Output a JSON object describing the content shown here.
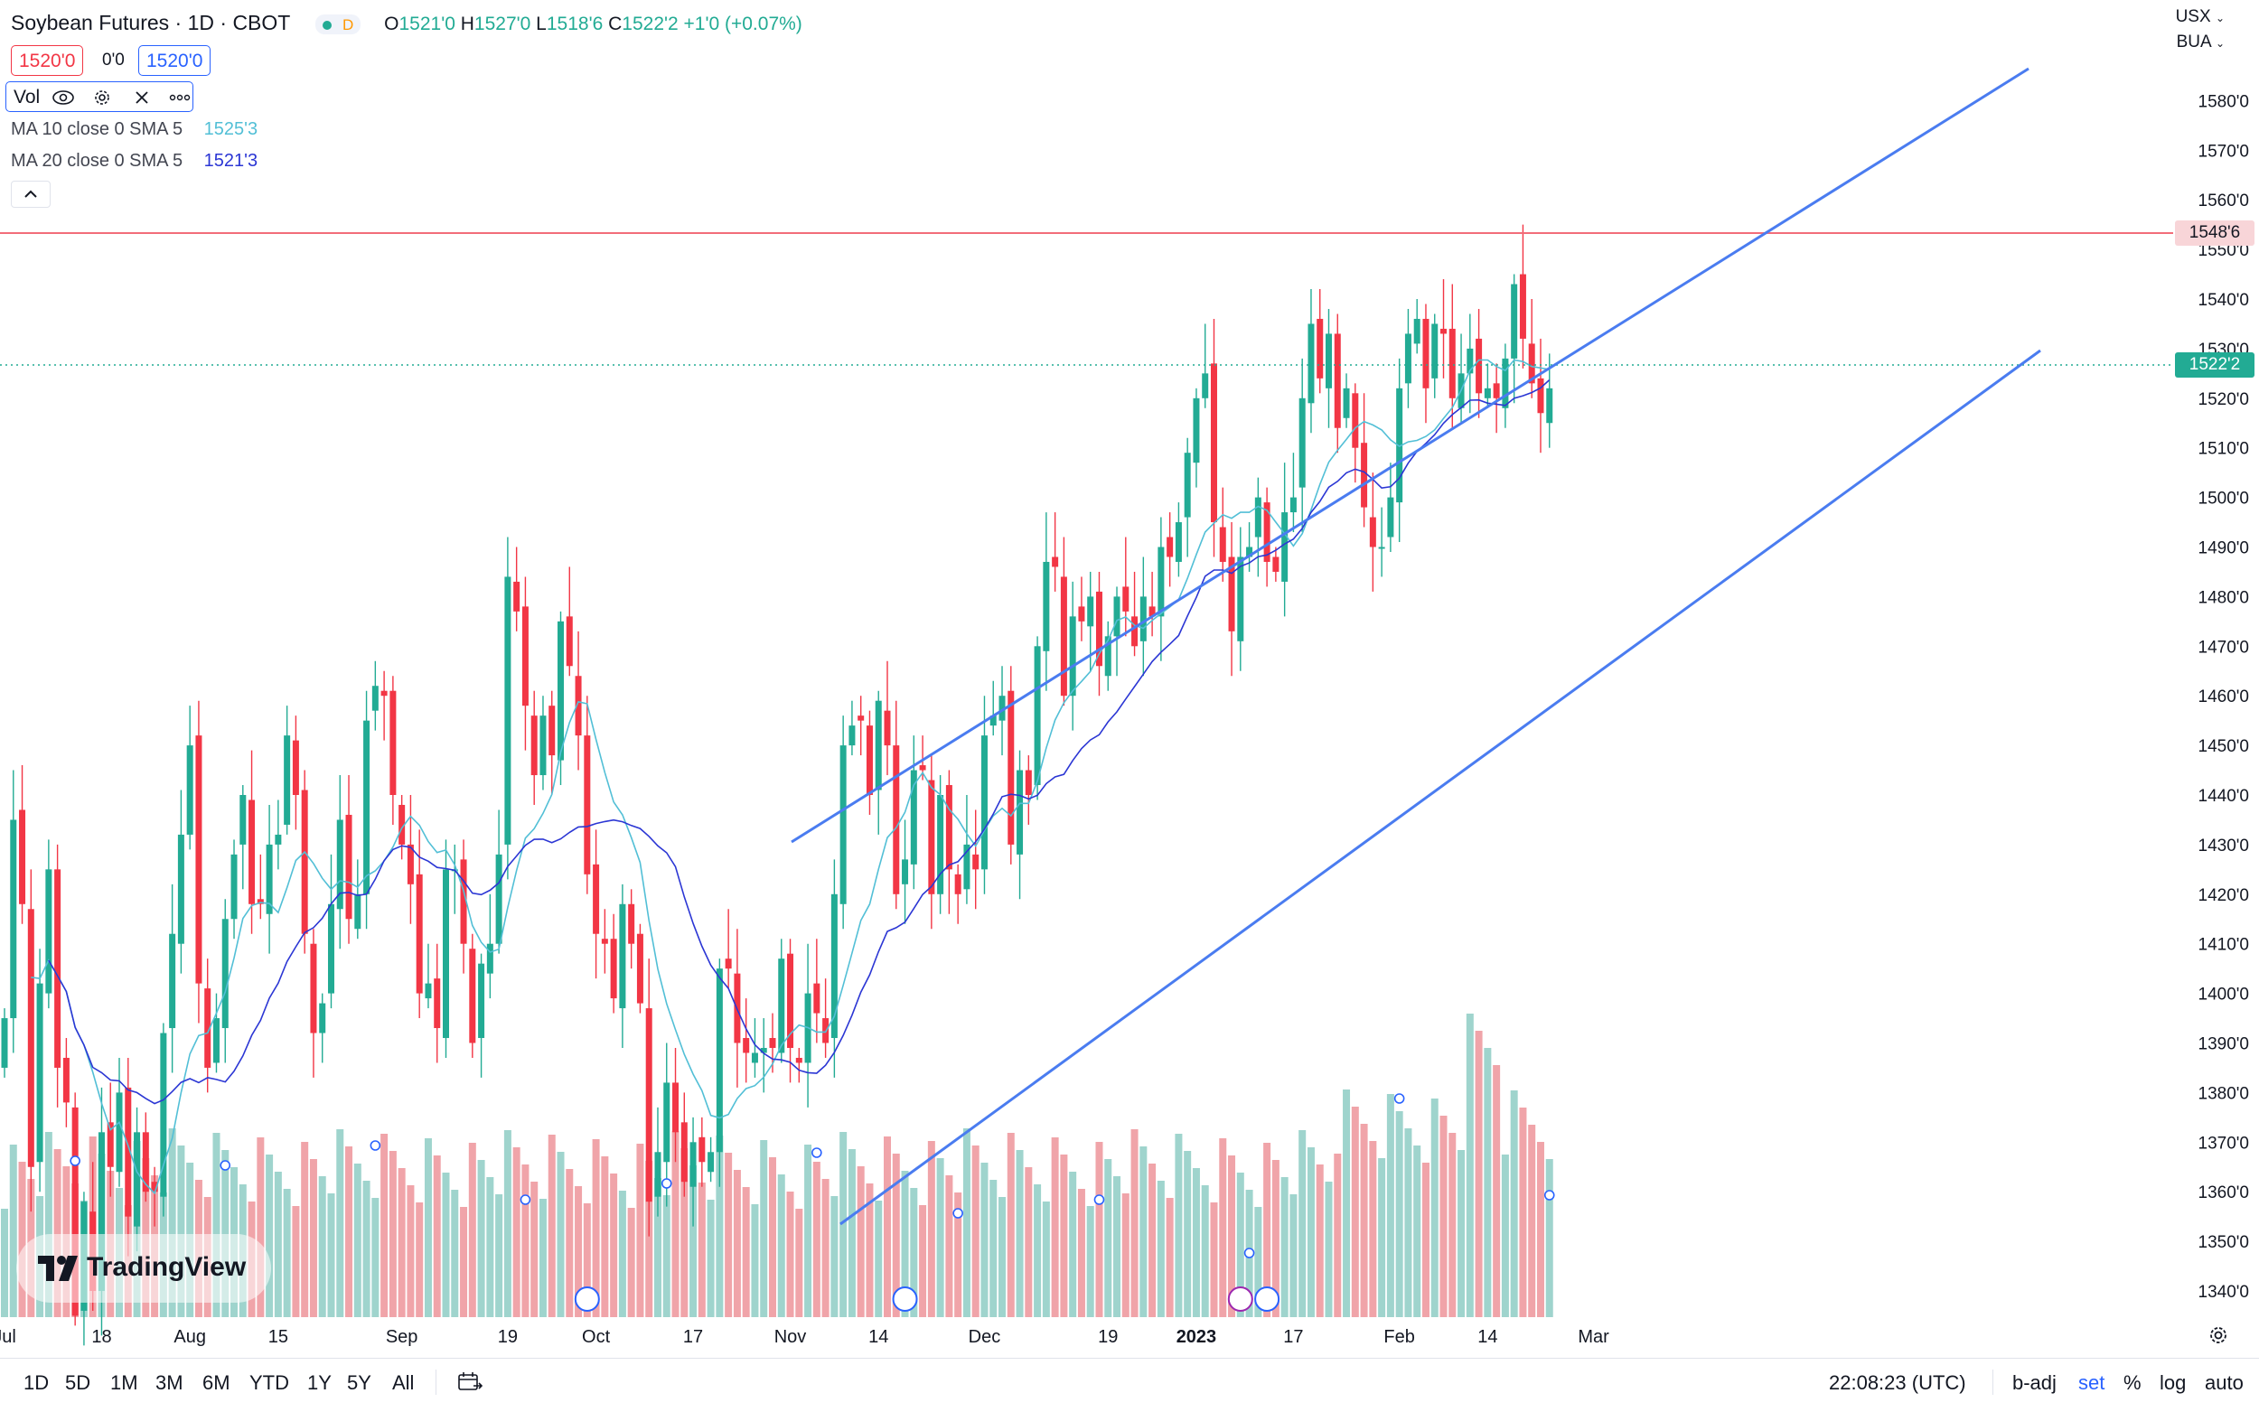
{
  "header": {
    "title": "Soybean Futures · 1D · CBOT",
    "status_letter": "D",
    "open_label": "O",
    "open": "1521'0",
    "high_label": "H",
    "high": "1527'0",
    "low_label": "L",
    "low": "1518'6",
    "close_label": "C",
    "close": "1522'2",
    "change": "+1'0 (+0.07%)",
    "sell_price": "1520'0",
    "spread": "0'0",
    "buy_price": "1520'0"
  },
  "currency": {
    "unit": "USX",
    "unit2": "BUA"
  },
  "indicators": {
    "vol_label": "Vol",
    "ma10_label": "MA 10 close 0 SMA 5",
    "ma10_value": "1525'3",
    "ma20_label": "MA 20 close 0 SMA 5",
    "ma20_value": "1521'3"
  },
  "price_tags": {
    "resistance": "1548'6",
    "last": "1522'2"
  },
  "logo": "TradingView",
  "bottom_bar": {
    "timeframes": [
      "1D",
      "5D",
      "1M",
      "3M",
      "6M",
      "YTD",
      "1Y",
      "5Y",
      "All"
    ],
    "clock": "22:08:23 (UTC)",
    "badj": "b-adj",
    "set": "set",
    "pct": "%",
    "log": "log",
    "auto": "auto"
  },
  "colors": {
    "up": "#22ab94",
    "down": "#f23645",
    "up_vol": "#9fd4cd",
    "down_vol": "#f0a4a9",
    "ma10": "#52bfd6",
    "ma20": "#2b36d4",
    "trend": "#4a7cf0",
    "resistance": "#f26d79",
    "accent": "#2962ff"
  },
  "chart_data": {
    "type": "candlestick",
    "title": "Soybean Futures · 1D · CBOT",
    "ylim": [
      1332,
      1585
    ],
    "y_ticks": [
      "1340'0",
      "1350'0",
      "1360'0",
      "1370'0",
      "1380'0",
      "1390'0",
      "1400'0",
      "1410'0",
      "1420'0",
      "1430'0",
      "1440'0",
      "1450'0",
      "1460'0",
      "1470'0",
      "1480'0",
      "1490'0",
      "1500'0",
      "1510'0",
      "1520'0",
      "1530'0",
      "1540'0",
      "1550'0",
      "1560'0",
      "1570'0",
      "1580'0"
    ],
    "x_ticks": [
      {
        "label": "Jul",
        "idx": 0
      },
      {
        "label": "18",
        "idx": 11
      },
      {
        "label": "Aug",
        "idx": 21
      },
      {
        "label": "15",
        "idx": 31
      },
      {
        "label": "Sep",
        "idx": 45
      },
      {
        "label": "19",
        "idx": 57
      },
      {
        "label": "Oct",
        "idx": 67
      },
      {
        "label": "17",
        "idx": 78
      },
      {
        "label": "Nov",
        "idx": 89
      },
      {
        "label": "14",
        "idx": 99
      },
      {
        "label": "Dec",
        "idx": 111
      },
      {
        "label": "19",
        "idx": 125
      },
      {
        "label": "2023",
        "idx": 135
      },
      {
        "label": "17",
        "idx": 146
      },
      {
        "label": "Feb",
        "idx": 158
      },
      {
        "label": "14",
        "idx": 168
      },
      {
        "label": "Mar",
        "idx": 180
      }
    ],
    "closes": [
      1395,
      1435,
      1418,
      1365,
      1402,
      1425,
      1385,
      1378,
      1335,
      1358,
      1340,
      1372,
      1365,
      1380,
      1355,
      1372,
      1360,
      1360,
      1392,
      1412,
      1432,
      1450,
      1402,
      1385,
      1395,
      1415,
      1428,
      1440,
      1418,
      1418,
      1430,
      1432,
      1452,
      1440,
      1412,
      1392,
      1398,
      1418,
      1435,
      1415,
      1420,
      1455,
      1462,
      1460,
      1440,
      1430,
      1422,
      1400,
      1402,
      1393,
      1425,
      1425,
      1410,
      1390,
      1406,
      1410,
      1428,
      1484,
      1477,
      1458,
      1444,
      1456,
      1448,
      1475,
      1466,
      1452,
      1424,
      1412,
      1410,
      1399,
      1418,
      1410,
      1398,
      1358,
      1368,
      1382,
      1372,
      1362,
      1370,
      1366,
      1368,
      1405,
      1405,
      1390,
      1388,
      1388,
      1389,
      1389,
      1407,
      1389,
      1386,
      1400,
      1396,
      1390,
      1420,
      1450,
      1454,
      1455,
      1440,
      1459,
      1450,
      1420,
      1427,
      1445,
      1445,
      1420,
      1440,
      1425,
      1420,
      1430,
      1425,
      1452,
      1456,
      1460,
      1430,
      1445,
      1440,
      1470,
      1487,
      1486,
      1460,
      1476,
      1475,
      1480,
      1466,
      1472,
      1480,
      1477,
      1470,
      1480,
      1476,
      1490,
      1488,
      1495,
      1509,
      1520,
      1525,
      1495,
      1487,
      1473,
      1488,
      1490,
      1500,
      1487,
      1485,
      1497,
      1500,
      1520,
      1535,
      1524,
      1533,
      1514,
      1522,
      1510,
      1498,
      1490,
      1490,
      1500,
      1522,
      1533,
      1536,
      1522,
      1535,
      1533,
      1520,
      1525,
      1530,
      1521,
      1522,
      1520,
      1528,
      1543,
      1532,
      1523,
      1517,
      1522
    ]
  }
}
